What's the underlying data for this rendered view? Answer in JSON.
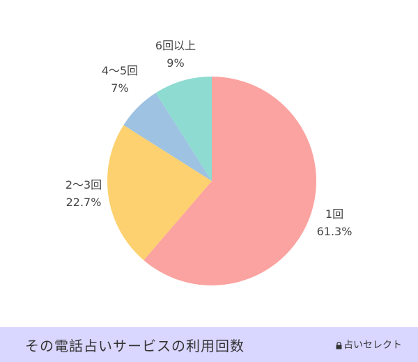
{
  "chart_data": {
    "type": "pie",
    "slices": [
      {
        "label": "1回",
        "value": 61.3,
        "value_text": "61.3%",
        "color": "#fba3a0"
      },
      {
        "label": "2〜3回",
        "value": 22.7,
        "value_text": "22.7%",
        "color": "#fdd16f"
      },
      {
        "label": "4〜5回",
        "value": 7,
        "value_text": "7%",
        "color": "#9dc2e2"
      },
      {
        "label": "6回以上",
        "value": 9,
        "value_text": "9%",
        "color": "#8edcd1"
      }
    ],
    "start": "top",
    "direction": "clockwise"
  },
  "footer": {
    "title": "その電話占いサービスの利用回数",
    "brand": "占いセレクト"
  }
}
